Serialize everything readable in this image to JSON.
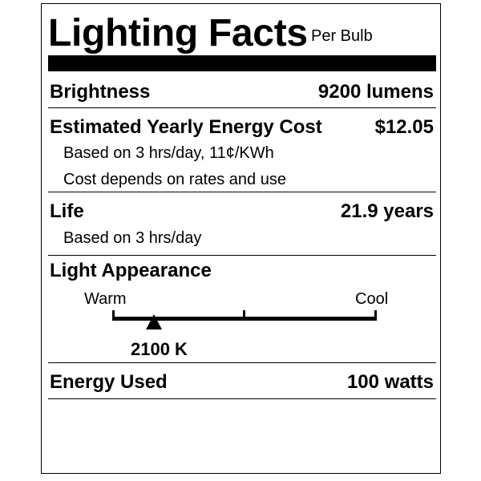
{
  "header": {
    "title": "Lighting Facts",
    "subtitle": "Per Bulb"
  },
  "brightness": {
    "label": "Brightness",
    "value": "9200 lumens"
  },
  "cost": {
    "label": "Estimated Yearly Energy Cost",
    "value": "$12.05",
    "note1": "Based on 3 hrs/day, 11¢/KWh",
    "note2": "Cost depends on rates and use"
  },
  "life": {
    "label": "Life",
    "value": "21.9 years",
    "note": "Based on 3 hrs/day"
  },
  "appearance": {
    "label": "Light Appearance",
    "warm_label": "Warm",
    "cool_label": "Cool",
    "value": "2100 K",
    "marker_fraction": 0.16
  },
  "energy": {
    "label": "Energy Used",
    "value": "100 watts"
  }
}
